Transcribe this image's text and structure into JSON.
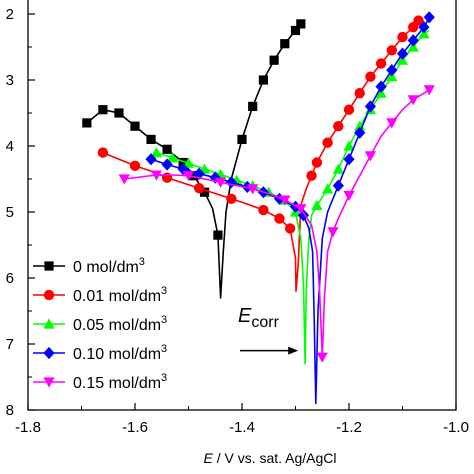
{
  "chart_data": {
    "type": "line",
    "xlabel": {
      "italic": "E",
      "rest": " / V vs. sat. Ag/AgCl"
    },
    "xlim": [
      -1.8,
      -1.0
    ],
    "x_ticks": [
      -1.8,
      -1.6,
      -1.4,
      -1.2,
      -1.0
    ],
    "x_tick_labels": [
      "-1.8",
      "-1.6",
      "-1.4",
      "-1.2",
      "-1.0"
    ],
    "ylim": [
      -8,
      -2
    ],
    "y_ticks": [
      -2,
      -3,
      -4,
      -5,
      -6,
      -7,
      -8
    ],
    "y_tick_labels": [
      "2",
      "3",
      "4",
      "5",
      "6",
      "7",
      "8"
    ],
    "legend_position": "bottom-left",
    "annotation": {
      "main": "E",
      "sub": "corr",
      "arrow_to": [
        -1.295,
        -7.1
      ]
    },
    "series": [
      {
        "name": "0 mol/dm3",
        "legend_base": "0 mol/dm",
        "legend_sup": "3",
        "color": "#000000",
        "marker": "square",
        "x": [
          -1.69,
          -1.66,
          -1.63,
          -1.6,
          -1.57,
          -1.54,
          -1.51,
          -1.49,
          -1.47,
          -1.455,
          -1.445,
          -1.44,
          -1.435,
          -1.43,
          -1.42,
          -1.4,
          -1.38,
          -1.36,
          -1.34,
          -1.32,
          -1.3,
          -1.29
        ],
        "y": [
          -3.65,
          -3.45,
          -3.5,
          -3.7,
          -3.9,
          -4.05,
          -4.25,
          -4.45,
          -4.7,
          -4.95,
          -5.35,
          -6.3,
          -5.6,
          -5.0,
          -4.5,
          -3.9,
          -3.4,
          -3.0,
          -2.7,
          -2.45,
          -2.25,
          -2.15
        ],
        "marker_every": [
          0,
          1,
          2,
          3,
          4,
          5,
          6,
          7,
          8,
          10,
          15,
          16,
          17,
          18,
          19,
          20,
          21
        ]
      },
      {
        "name": "0.01 mol/dm3",
        "legend_base": "0.01 mol/dm",
        "legend_sup": "3",
        "color": "#ff0000",
        "marker": "circle",
        "x": [
          -1.66,
          -1.63,
          -1.6,
          -1.57,
          -1.54,
          -1.51,
          -1.48,
          -1.45,
          -1.42,
          -1.39,
          -1.36,
          -1.33,
          -1.31,
          -1.3,
          -1.299,
          -1.295,
          -1.29,
          -1.28,
          -1.27,
          -1.26,
          -1.24,
          -1.22,
          -1.2,
          -1.18,
          -1.16,
          -1.14,
          -1.12,
          -1.1,
          -1.08,
          -1.07
        ],
        "y": [
          -4.1,
          -4.2,
          -4.3,
          -4.38,
          -4.48,
          -4.56,
          -4.64,
          -4.72,
          -4.8,
          -4.88,
          -4.97,
          -5.1,
          -5.25,
          -5.7,
          -6.2,
          -5.8,
          -4.9,
          -4.65,
          -4.45,
          -4.25,
          -3.95,
          -3.7,
          -3.45,
          -3.2,
          -2.95,
          -2.75,
          -2.55,
          -2.35,
          -2.2,
          -2.1
        ],
        "marker_every": [
          0,
          2,
          4,
          6,
          8,
          10,
          11,
          12,
          18,
          19,
          20,
          21,
          22,
          23,
          24,
          25,
          26,
          27,
          28,
          29
        ]
      },
      {
        "name": "0.05 mol/dm3",
        "legend_base": "0.05 mol/dm",
        "legend_sup": "3",
        "color": "#00ff00",
        "marker": "triangle-up",
        "x": [
          -1.56,
          -1.53,
          -1.5,
          -1.47,
          -1.44,
          -1.41,
          -1.38,
          -1.35,
          -1.32,
          -1.3,
          -1.29,
          -1.285,
          -1.282,
          -1.28,
          -1.275,
          -1.27,
          -1.26,
          -1.24,
          -1.22,
          -1.2,
          -1.18,
          -1.16,
          -1.14,
          -1.12,
          -1.1,
          -1.08,
          -1.06,
          -1.05
        ],
        "y": [
          -4.1,
          -4.18,
          -4.26,
          -4.35,
          -4.43,
          -4.52,
          -4.6,
          -4.7,
          -4.82,
          -5.0,
          -5.4,
          -6.1,
          -7.3,
          -6.2,
          -5.4,
          -5.05,
          -4.9,
          -4.65,
          -4.35,
          -4.0,
          -3.7,
          -3.45,
          -3.2,
          -2.95,
          -2.7,
          -2.5,
          -2.3,
          -2.25
        ],
        "marker_every": [
          0,
          1,
          2,
          3,
          4,
          5,
          6,
          7,
          8,
          9,
          16,
          17,
          18,
          19,
          20,
          21,
          22,
          23,
          24,
          25,
          26
        ]
      },
      {
        "name": "0.10 mol/dm3",
        "legend_base": "0.10 mol/dm",
        "legend_sup": "3",
        "color": "#0000ff",
        "marker": "diamond",
        "x": [
          -1.57,
          -1.54,
          -1.51,
          -1.48,
          -1.45,
          -1.42,
          -1.39,
          -1.36,
          -1.33,
          -1.3,
          -1.285,
          -1.275,
          -1.268,
          -1.265,
          -1.262,
          -1.258,
          -1.25,
          -1.24,
          -1.22,
          -1.2,
          -1.18,
          -1.16,
          -1.14,
          -1.12,
          -1.1,
          -1.08,
          -1.06,
          -1.05
        ],
        "y": [
          -4.2,
          -4.28,
          -4.35,
          -4.42,
          -4.48,
          -4.55,
          -4.62,
          -4.7,
          -4.8,
          -4.92,
          -5.05,
          -5.25,
          -5.6,
          -6.6,
          -7.9,
          -6.5,
          -5.4,
          -5.0,
          -4.6,
          -4.2,
          -3.8,
          -3.4,
          -3.1,
          -2.85,
          -2.6,
          -2.4,
          -2.2,
          -2.05
        ],
        "marker_every": [
          0,
          1,
          2,
          3,
          4,
          5,
          6,
          7,
          8,
          9,
          10,
          18,
          19,
          20,
          21,
          22,
          23,
          24,
          25,
          26,
          27
        ]
      },
      {
        "name": "0.15 mol/dm3",
        "legend_base": "0.15 mol/dm",
        "legend_sup": "3",
        "color": "#ff00ff",
        "marker": "triangle-down",
        "x": [
          -1.62,
          -1.59,
          -1.56,
          -1.53,
          -1.5,
          -1.47,
          -1.44,
          -1.41,
          -1.38,
          -1.35,
          -1.32,
          -1.29,
          -1.27,
          -1.26,
          -1.255,
          -1.25,
          -1.246,
          -1.24,
          -1.23,
          -1.22,
          -1.2,
          -1.18,
          -1.16,
          -1.14,
          -1.12,
          -1.1,
          -1.08,
          -1.06,
          -1.05
        ],
        "y": [
          -4.5,
          -4.47,
          -4.44,
          -4.44,
          -4.45,
          -4.5,
          -4.55,
          -4.6,
          -4.65,
          -4.72,
          -4.82,
          -4.95,
          -5.2,
          -5.6,
          -6.2,
          -7.2,
          -6.3,
          -5.6,
          -5.3,
          -5.1,
          -4.75,
          -4.45,
          -4.15,
          -3.85,
          -3.65,
          -3.45,
          -3.3,
          -3.2,
          -3.15
        ],
        "marker_every": [
          0,
          2,
          4,
          6,
          8,
          10,
          11,
          15,
          18,
          20,
          22,
          24,
          26,
          28
        ]
      }
    ]
  }
}
